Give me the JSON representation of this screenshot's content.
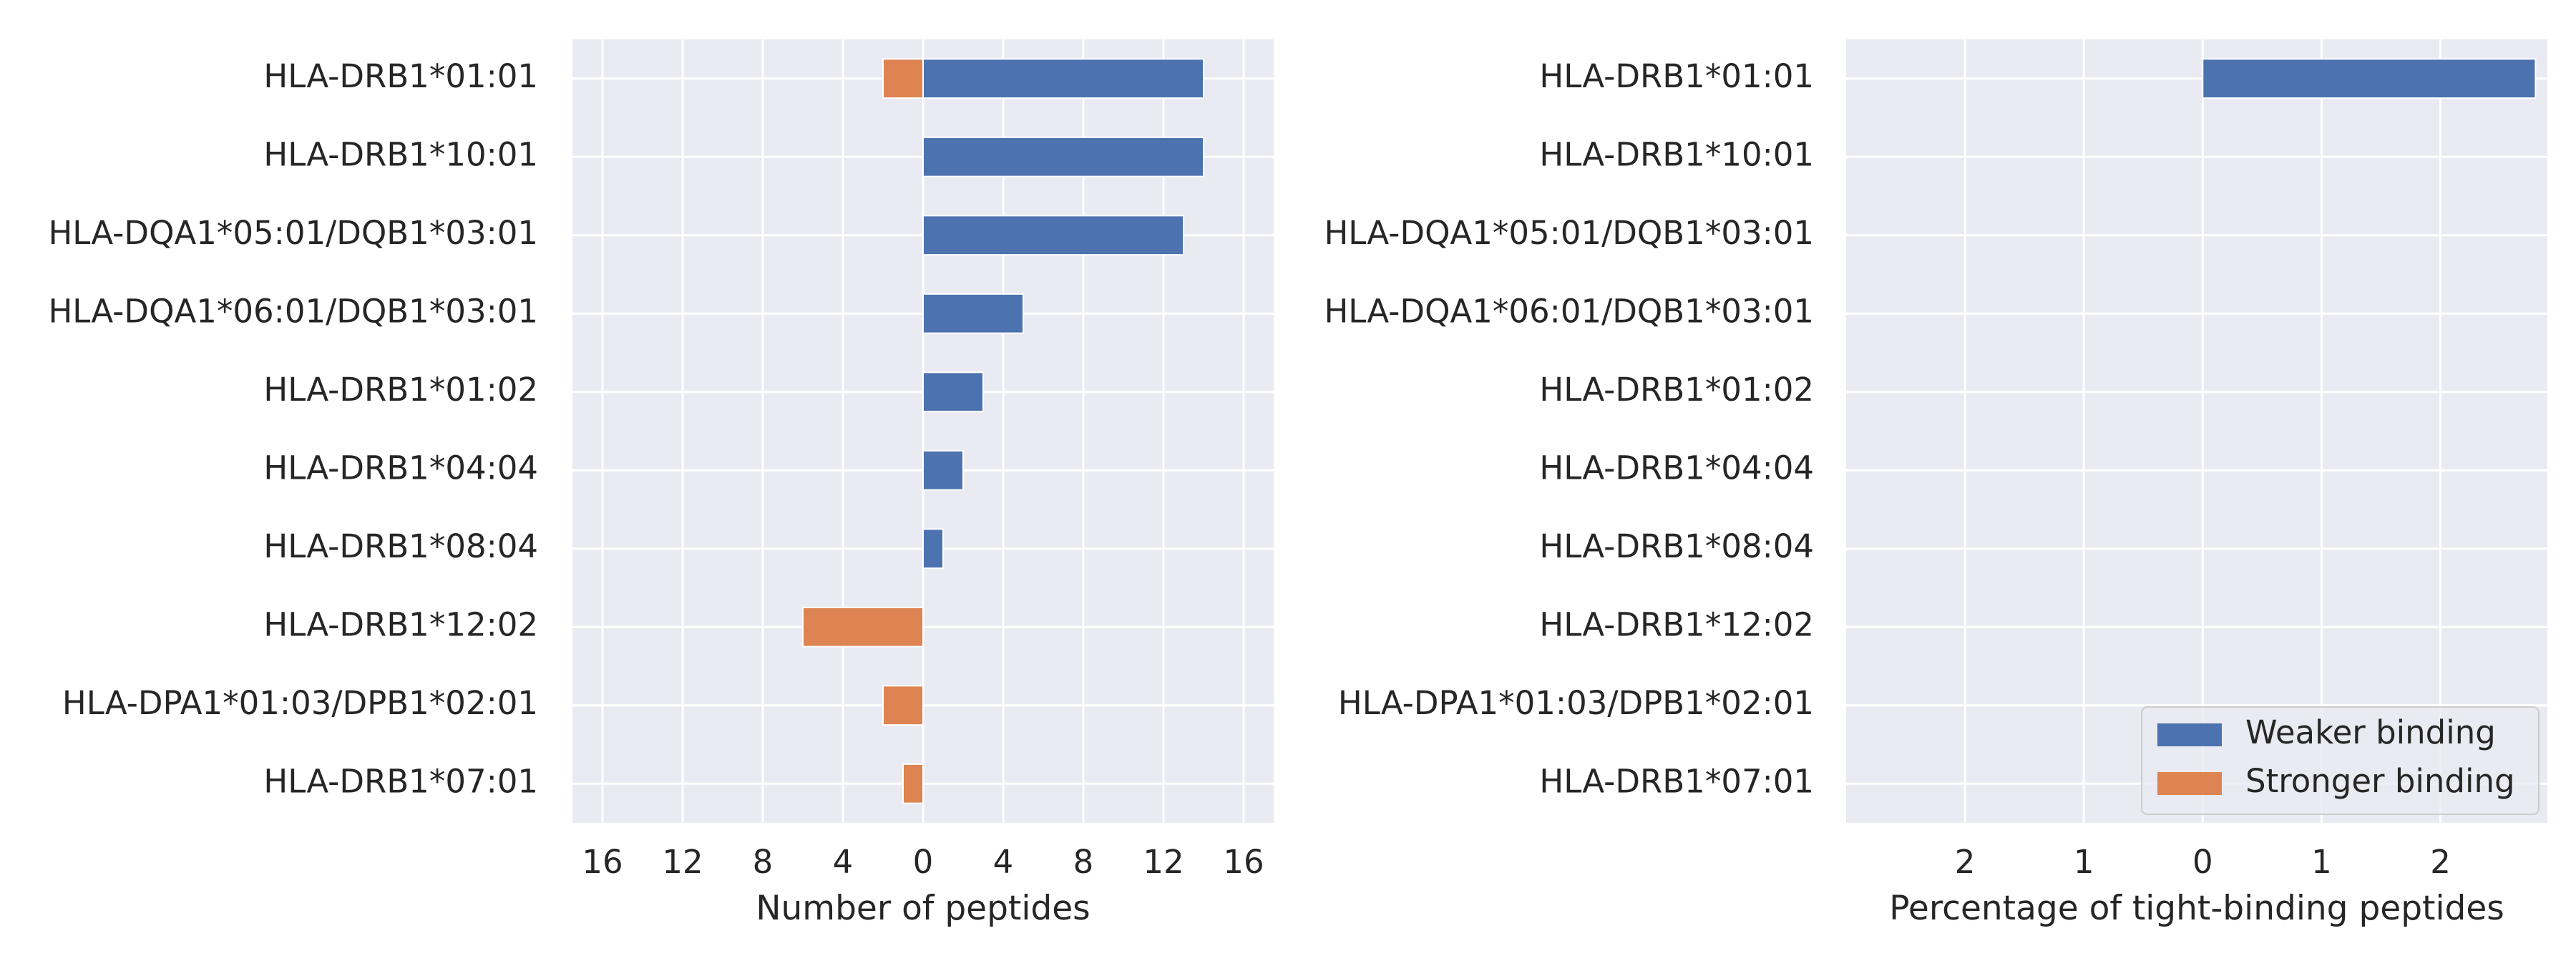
{
  "chart_data": [
    {
      "type": "bar",
      "orientation": "horizontal",
      "categories": [
        "HLA-DRB1*01:01",
        "HLA-DRB1*10:01",
        "HLA-DQA1*05:01/DQB1*03:01",
        "HLA-DQA1*06:01/DQB1*03:01",
        "HLA-DRB1*01:02",
        "HLA-DRB1*04:04",
        "HLA-DRB1*08:04",
        "HLA-DRB1*12:02",
        "HLA-DPA1*01:03/DPB1*02:01",
        "HLA-DRB1*07:01"
      ],
      "series": [
        {
          "name": "Weaker binding",
          "color": "#4c72b0",
          "values": [
            14,
            14,
            13,
            5,
            3,
            2,
            1,
            0,
            0,
            0
          ]
        },
        {
          "name": "Stronger binding",
          "color": "#dd8452",
          "values": [
            2,
            0,
            0,
            0,
            0,
            0,
            0,
            6,
            2,
            1
          ]
        }
      ],
      "stronger_plotted_as_negative": true,
      "xlabel": "Number of peptides",
      "xlim": [
        -17.5,
        17.5
      ],
      "xticks": [
        -16,
        -12,
        -8,
        -4,
        0,
        4,
        8,
        12,
        16
      ],
      "xtick_labels": [
        "16",
        "12",
        "8",
        "4",
        "0",
        "4",
        "8",
        "12",
        "16"
      ],
      "grid": true,
      "background": "#eaeaf2"
    },
    {
      "type": "bar",
      "orientation": "horizontal",
      "categories": [
        "HLA-DRB1*01:01",
        "HLA-DRB1*10:01",
        "HLA-DQA1*05:01/DQB1*03:01",
        "HLA-DQA1*06:01/DQB1*03:01",
        "HLA-DRB1*01:02",
        "HLA-DRB1*04:04",
        "HLA-DRB1*08:04",
        "HLA-DRB1*12:02",
        "HLA-DPA1*01:03/DPB1*02:01",
        "HLA-DRB1*07:01"
      ],
      "series": [
        {
          "name": "Weaker binding",
          "color": "#4c72b0",
          "values": [
            2.8,
            0,
            0,
            0,
            0,
            0,
            0,
            0,
            0,
            0
          ]
        },
        {
          "name": "Stronger binding",
          "color": "#dd8452",
          "values": [
            0,
            0,
            0,
            0,
            0,
            0,
            0,
            0,
            0,
            0
          ]
        }
      ],
      "stronger_plotted_as_negative": true,
      "xlabel": "Percentage of tight-binding peptides",
      "xlim": [
        -3.0,
        2.9
      ],
      "xticks": [
        -2,
        -1,
        0,
        1,
        2
      ],
      "xtick_labels": [
        "2",
        "1",
        "0",
        "1",
        "2"
      ],
      "grid": true,
      "background": "#eaeaf2",
      "legend": {
        "placement": "lower-right",
        "entries": [
          "Weaker binding",
          "Stronger binding"
        ]
      }
    }
  ]
}
